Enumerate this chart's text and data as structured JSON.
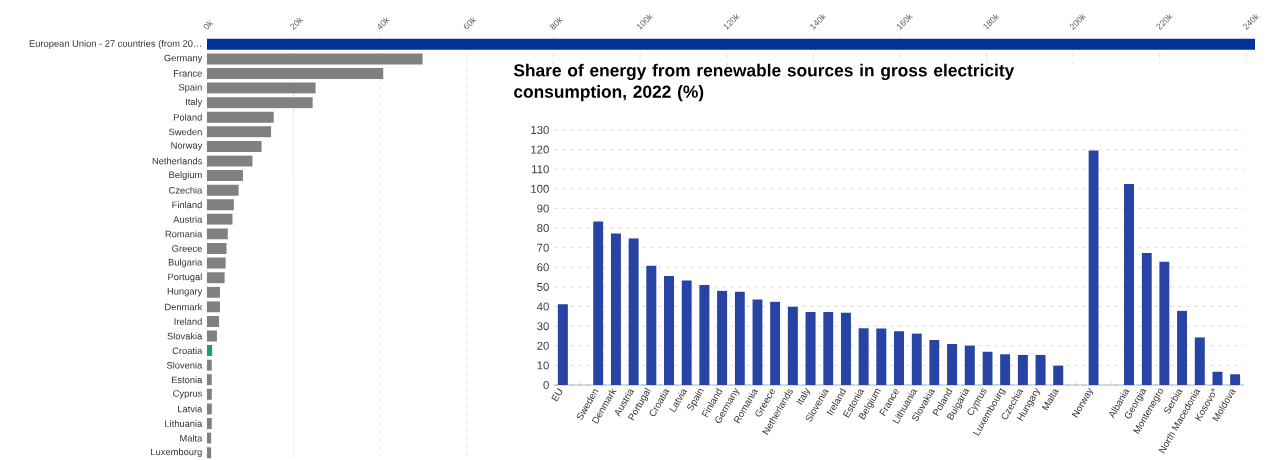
{
  "chart_data": [
    {
      "type": "bar",
      "orientation": "horizontal",
      "categories": [
        "European Union - 27 countries (from 20…",
        "Germany",
        "France",
        "Spain",
        "Italy",
        "Poland",
        "Sweden",
        "Norway",
        "Netherlands",
        "Belgium",
        "Czechia",
        "Finland",
        "Austria",
        "Romania",
        "Greece",
        "Bulgaria",
        "Portugal",
        "Hungary",
        "Denmark",
        "Ireland",
        "Slovakia",
        "Croatia",
        "Slovenia",
        "Estonia",
        "Cyprus",
        "Latvia",
        "Lithuania",
        "Malta",
        "Luxembourg"
      ],
      "values": [
        242000,
        49800,
        40700,
        25100,
        24400,
        15400,
        14800,
        12600,
        10500,
        8300,
        7300,
        6200,
        5900,
        4800,
        4500,
        4300,
        4100,
        3000,
        3000,
        2800,
        2300,
        1200,
        1100,
        1100,
        1100,
        1100,
        1100,
        1000,
        1000
      ],
      "colors": [
        "#003399",
        "#808080",
        "#808080",
        "#808080",
        "#808080",
        "#808080",
        "#808080",
        "#808080",
        "#808080",
        "#808080",
        "#808080",
        "#808080",
        "#808080",
        "#808080",
        "#808080",
        "#808080",
        "#808080",
        "#808080",
        "#808080",
        "#808080",
        "#808080",
        "#17a07a",
        "#808080",
        "#808080",
        "#808080",
        "#808080",
        "#808080",
        "#808080",
        "#808080"
      ],
      "xlim": [
        0,
        242000
      ],
      "xticks": [
        {
          "value": 0,
          "label": "0k"
        },
        {
          "value": 20000,
          "label": "20k"
        },
        {
          "value": 40000,
          "label": "40k"
        },
        {
          "value": 60000,
          "label": "60k"
        },
        {
          "value": 80000,
          "label": "80k"
        },
        {
          "value": 100000,
          "label": "100k"
        },
        {
          "value": 120000,
          "label": "120k"
        },
        {
          "value": 140000,
          "label": "140k"
        },
        {
          "value": 160000,
          "label": "160k"
        },
        {
          "value": 180000,
          "label": "180k"
        },
        {
          "value": 200000,
          "label": "200k"
        },
        {
          "value": 220000,
          "label": "220k"
        },
        {
          "value": 240000,
          "label": "240k"
        }
      ],
      "grid": "x"
    },
    {
      "type": "bar",
      "title": "Share of energy from renewable sources in gross electricity consumption, 2022 (%)",
      "categories": [
        "EU",
        null,
        "Sweden",
        "Denmark",
        "Austria",
        "Portugal",
        "Croatia",
        "Latvia",
        "Spain",
        "Finland",
        "Germany",
        "Romania",
        "Greece",
        "Netherlands",
        "Italy",
        "Slovenia",
        "Ireland",
        "Estonia",
        "Belgium",
        "France",
        "Lithuania",
        "Slovakia",
        "Poland",
        "Bulgaria",
        "Cyprus",
        "Luxembourg",
        "Czechia",
        "Hungary",
        "Malta",
        null,
        "Norway",
        null,
        "Albania",
        "Georgia",
        "Montenegro",
        "Serbia",
        "North Macedonia",
        "Kosovo*",
        "Moldova"
      ],
      "values": [
        41.2,
        null,
        83.3,
        77.2,
        74.8,
        60.8,
        55.6,
        53.3,
        51.0,
        48.0,
        47.6,
        43.6,
        42.4,
        40.0,
        37.2,
        37.2,
        36.8,
        28.9,
        28.8,
        27.4,
        26.2,
        22.9,
        20.9,
        20.1,
        16.9,
        15.7,
        15.4,
        15.4,
        10.0,
        null,
        119.6,
        null,
        102.5,
        67.3,
        62.8,
        37.9,
        24.3,
        6.7,
        5.5
      ],
      "color": "#2743a3",
      "ylim": [
        0,
        130
      ],
      "yticks": [
        0,
        10,
        20,
        30,
        40,
        50,
        60,
        70,
        80,
        90,
        100,
        110,
        120,
        130
      ],
      "grid": "y"
    }
  ]
}
